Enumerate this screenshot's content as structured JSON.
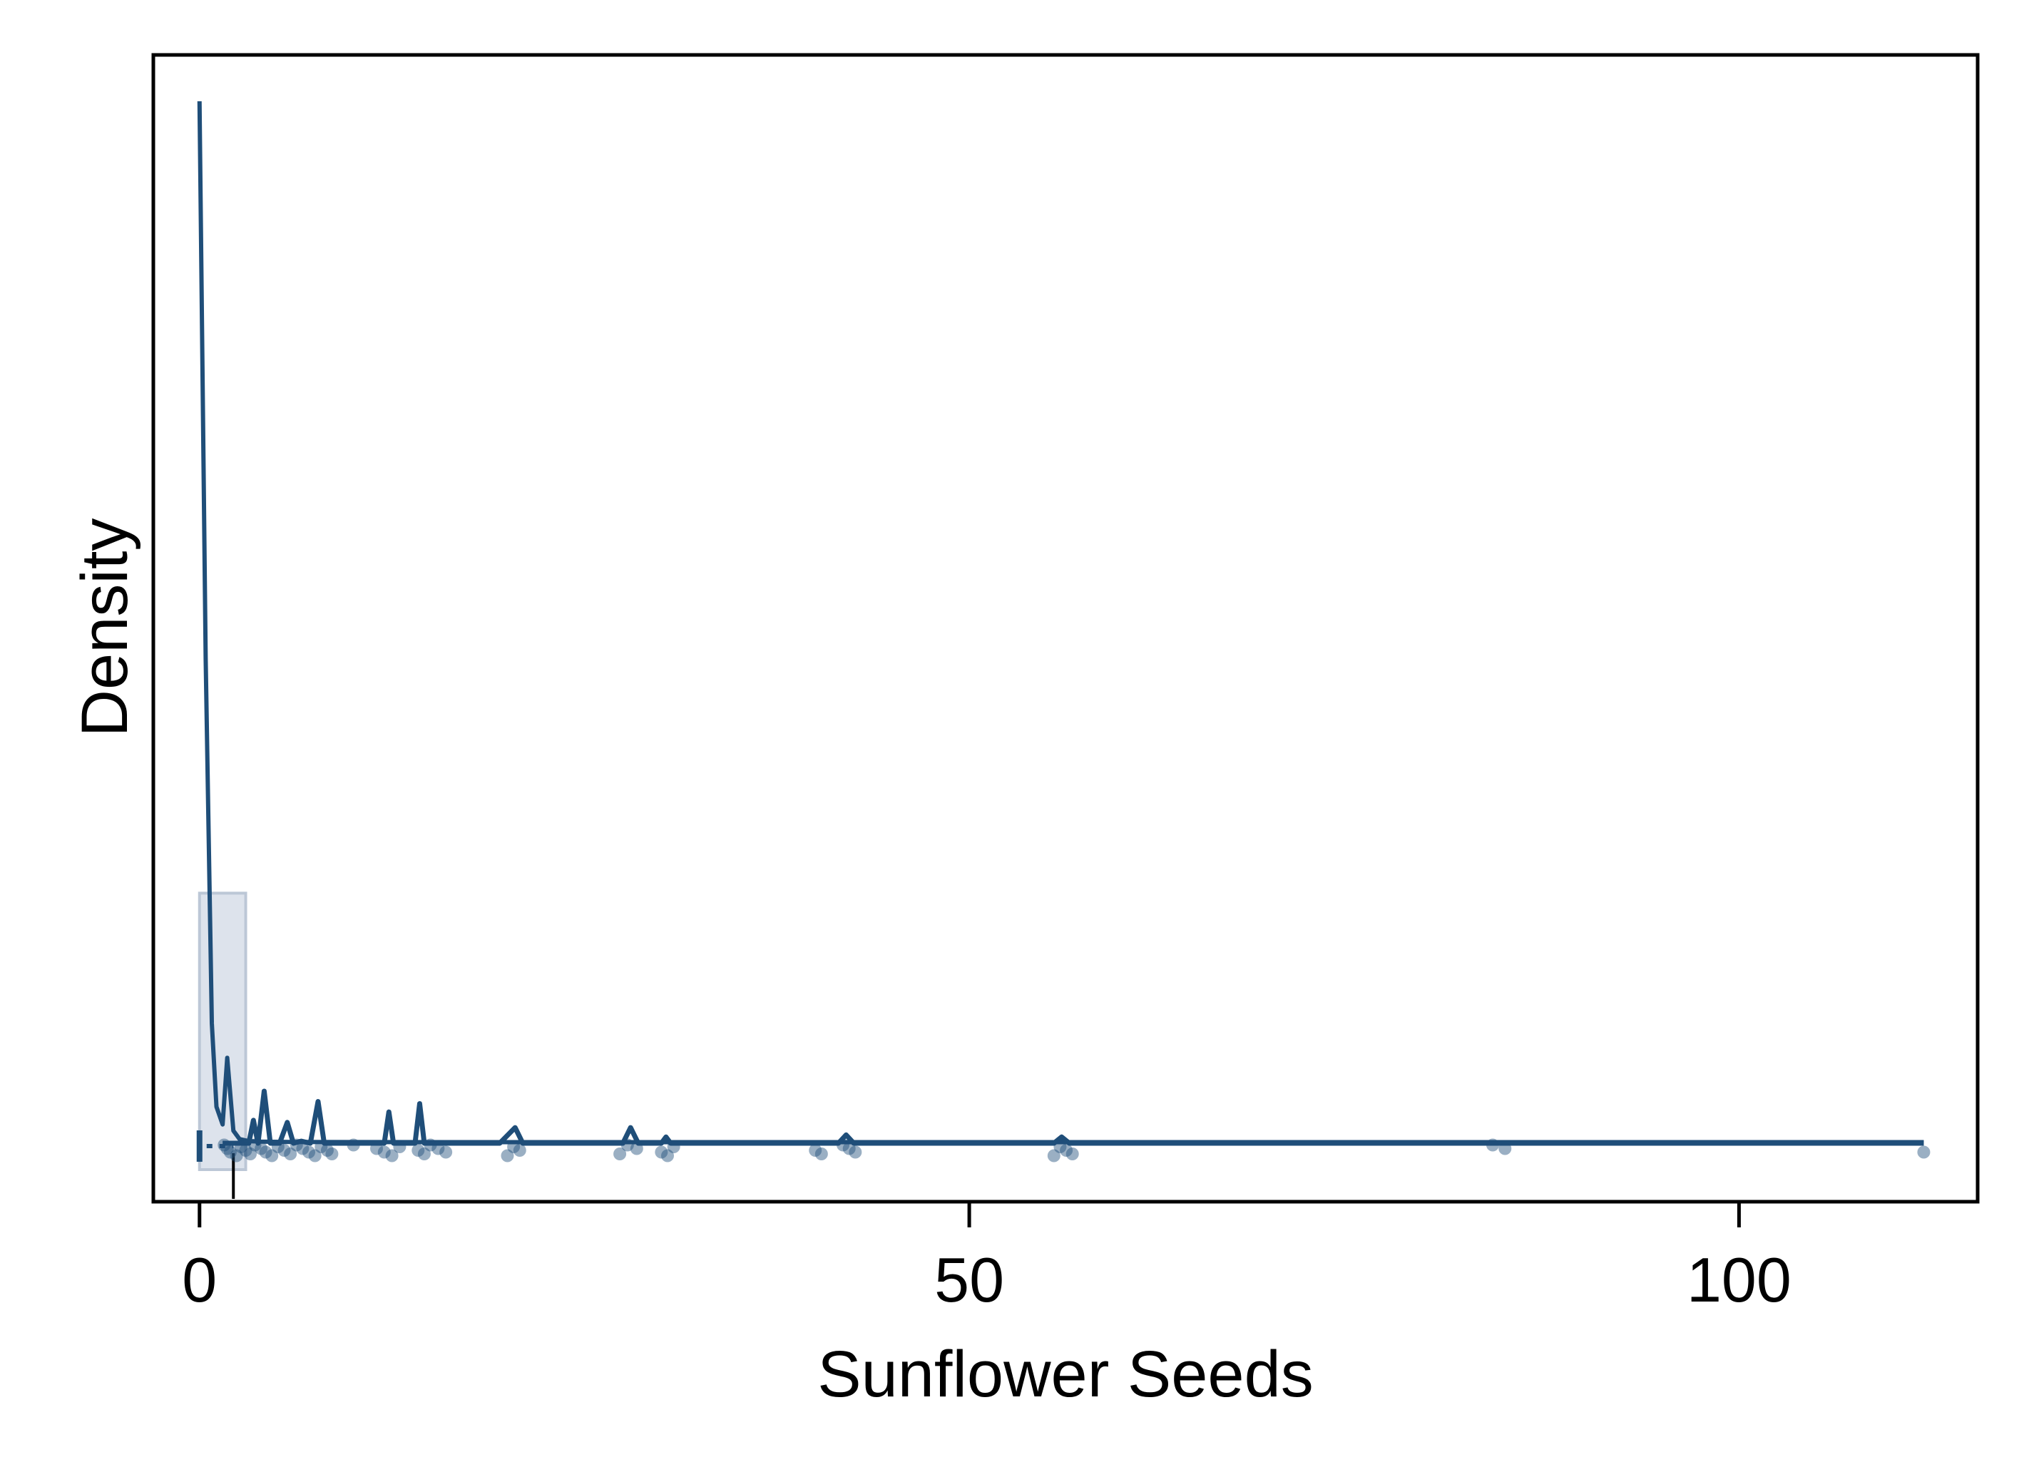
{
  "chart_data": {
    "type": "density",
    "title": "",
    "xlabel": "Sunflower Seeds",
    "ylabel": "Density",
    "xlim": [
      -3,
      115.5
    ],
    "ylim": [
      0,
      1.05
    ],
    "x_ticks": [
      0,
      50,
      100
    ],
    "x_tick_labels": [
      "0",
      "50",
      "100"
    ],
    "y_ticks": [],
    "colors": {
      "line": "#1f4e79",
      "histogram_fill": "#dde3ec",
      "histogram_edge": "#bcc7d6",
      "points": "#1f4e79"
    },
    "histogram": [
      {
        "x0": 0,
        "x1": 3,
        "density": 0.24
      }
    ],
    "density_curve": {
      "x": [
        0,
        0.4,
        0.8,
        1.1,
        1.5,
        1.8,
        2.2,
        2.6,
        3.2,
        4,
        6,
        10,
        20,
        30,
        40,
        50,
        60,
        70,
        80,
        90,
        100,
        112
      ],
      "y": [
        1.0,
        0.465,
        0.115,
        0.035,
        0.018,
        0.082,
        0.012,
        0.004,
        0.002,
        0.0015,
        0.0012,
        0.0011,
        0.001,
        0.001,
        0.001,
        0.001,
        0.001,
        0.001,
        0.001,
        0.001,
        0.001,
        0.001
      ]
    },
    "rug_line": {
      "x": [
        1.5,
        3.2,
        3.5,
        3.8,
        4.2,
        4.6,
        5.2,
        5.7,
        6.1,
        6.6,
        7.2,
        7.7,
        8.1,
        8.5,
        12.0,
        12.3,
        12.6,
        13.0,
        14.0,
        14.3,
        14.6,
        15.0,
        19.5,
        20.5,
        21.0,
        27.5,
        28.0,
        28.5,
        30.0,
        30.3,
        30.6,
        41.5,
        42.0,
        42.5,
        55.5,
        56.0,
        56.5,
        110.0,
        112.0
      ],
      "y": [
        0,
        0,
        0.022,
        0,
        0.05,
        0,
        0,
        0.02,
        0,
        0.002,
        0,
        0.04,
        0,
        0,
        0,
        0.03,
        0,
        0,
        0,
        0.038,
        0,
        0,
        0,
        0.015,
        0,
        0,
        0.015,
        0,
        0,
        0.006,
        0,
        0,
        0.008,
        0,
        0,
        0.006,
        0,
        0,
        0
      ]
    },
    "box": {
      "min": 0,
      "median": 2.2,
      "max": 112
    },
    "points": [
      1.6,
      1.8,
      2.0,
      2.4,
      2.7,
      3.0,
      3.3,
      3.6,
      4.0,
      4.3,
      4.7,
      5.1,
      5.5,
      5.9,
      6.3,
      6.7,
      7.1,
      7.5,
      7.9,
      8.3,
      8.6,
      10.0,
      11.5,
      12.0,
      12.5,
      13.0,
      14.2,
      14.6,
      15.0,
      15.5,
      16.0,
      20.0,
      20.4,
      20.8,
      27.3,
      27.8,
      28.4,
      30.0,
      30.4,
      30.8,
      40.0,
      40.4,
      41.8,
      42.2,
      42.6,
      55.5,
      55.9,
      56.3,
      56.7,
      84.0,
      84.8,
      112.0
    ]
  }
}
